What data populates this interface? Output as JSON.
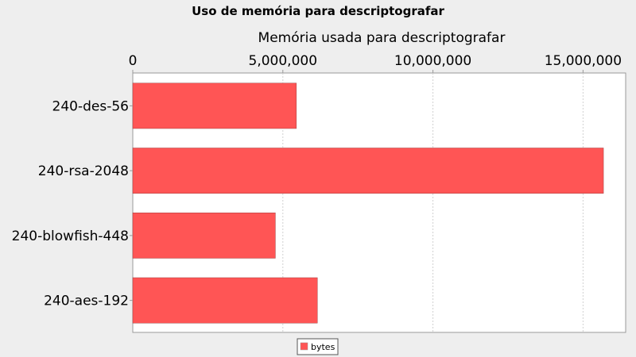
{
  "chart_data": {
    "type": "bar",
    "orientation": "horizontal",
    "title": "Uso de memória para descriptografar",
    "xlabel": "Memória usada para descriptografar",
    "ylabel": "",
    "categories": [
      "240-des-56",
      "240-rsa-2048",
      "240-blowfish-448",
      "240-aes-192"
    ],
    "series": [
      {
        "name": "bytes",
        "values": [
          5450000,
          15680000,
          4750000,
          6150000
        ],
        "color": "#ff5555"
      }
    ],
    "xlim": [
      0,
      16500000
    ],
    "ticks": [
      0,
      5000000,
      10000000,
      15000000
    ],
    "tick_labels": [
      "0",
      "5,000,000",
      "10,000,000",
      "15,000,000"
    ],
    "axis_position": "top",
    "grid": true,
    "legend_position": "bottom"
  }
}
